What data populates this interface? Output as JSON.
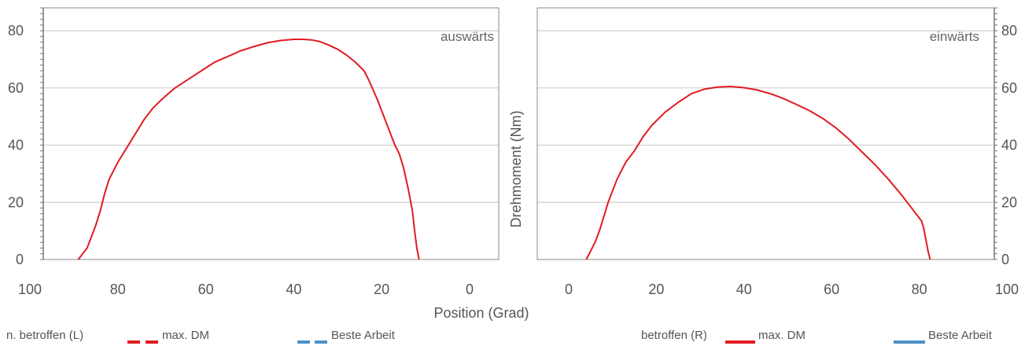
{
  "chart_data": [
    {
      "type": "line",
      "annotation": "auswärts",
      "xlabel": "Position (Grad)",
      "ylabel": "",
      "xlim": [
        100,
        0
      ],
      "ylim": [
        0,
        88
      ],
      "xticks": [
        "100",
        "80",
        "60",
        "40",
        "20",
        "0"
      ],
      "yticks": [
        "0",
        "20",
        "40",
        "60",
        "80"
      ],
      "grid": true,
      "series": [
        {
          "name": "max. DM",
          "color": "#e11b22",
          "x": [
            89,
            88,
            87,
            86,
            85,
            84,
            83,
            82,
            80,
            78,
            76,
            74,
            72,
            70,
            67,
            64,
            61,
            58,
            55,
            52,
            49,
            46,
            43,
            40,
            38,
            36,
            34,
            32,
            30,
            28,
            26,
            24,
            23,
            22,
            21,
            20,
            19,
            18,
            17,
            16,
            15,
            14,
            13,
            12.5,
            12,
            11.5
          ],
          "y": [
            0,
            2,
            4,
            8,
            12,
            17,
            23,
            28,
            34,
            39,
            44,
            49,
            53,
            56,
            60,
            63,
            66,
            69,
            71,
            73,
            74.5,
            75.8,
            76.6,
            77,
            77,
            76.8,
            76.2,
            75,
            73.5,
            71.5,
            69,
            66,
            63,
            59.5,
            56,
            52,
            48,
            44,
            40,
            37,
            32,
            25,
            17,
            10,
            4,
            0
          ]
        }
      ],
      "legend": {
        "side_label": "n. betroffen (L)",
        "items": [
          {
            "label": "max. DM",
            "color": "#e11b22",
            "style": "dashed"
          },
          {
            "label": "Beste Arbeit",
            "color": "#4a90c8",
            "style": "dashed"
          }
        ]
      }
    },
    {
      "type": "line",
      "annotation": "einwärts",
      "xlabel": "",
      "ylabel": "Drehmoment (Nm)",
      "xlim": [
        -10,
        100
      ],
      "ylim": [
        0,
        88
      ],
      "xticks": [
        "0",
        "20",
        "40",
        "60",
        "80",
        "100"
      ],
      "yticks": [
        "0",
        "20",
        "40",
        "60",
        "80"
      ],
      "grid": true,
      "series": [
        {
          "name": "max. DM",
          "color": "#e11b22",
          "x": [
            4,
            5,
            6,
            7,
            8,
            9,
            10,
            11,
            13,
            15,
            17,
            19,
            22,
            25,
            28,
            31,
            34,
            37,
            40,
            43,
            46,
            49,
            52,
            55,
            58,
            61,
            64,
            67,
            70,
            73,
            76,
            78,
            79.5,
            80.5,
            81,
            81.5,
            82,
            82.5
          ],
          "y": [
            0,
            3,
            6,
            10,
            15,
            20,
            24,
            28,
            34,
            38,
            43,
            47,
            51.5,
            55,
            58,
            59.6,
            60.3,
            60.5,
            60.1,
            59.3,
            58,
            56.3,
            54.2,
            52,
            49.3,
            46,
            42,
            37.5,
            33,
            28,
            22.5,
            18.5,
            15.5,
            13.5,
            11,
            7,
            3,
            0
          ]
        }
      ],
      "legend": {
        "side_label": "betroffen (R)",
        "items": [
          {
            "label": "max. DM",
            "color": "#e11b22",
            "style": "solid"
          },
          {
            "label": "Beste Arbeit",
            "color": "#4a90c8",
            "style": "solid"
          }
        ]
      }
    }
  ]
}
